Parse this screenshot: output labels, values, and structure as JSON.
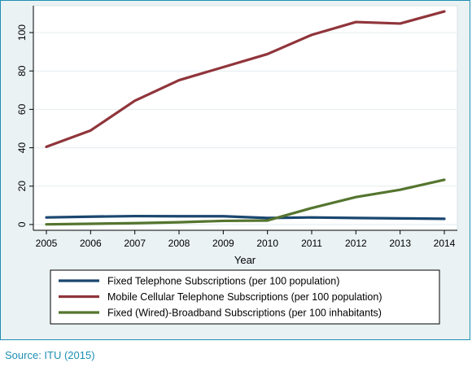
{
  "chart_data": {
    "type": "line",
    "title": "",
    "xlabel": "Year",
    "ylabel": "",
    "x": [
      2005,
      2006,
      2007,
      2008,
      2009,
      2010,
      2011,
      2012,
      2013,
      2014
    ],
    "x_ticks": [
      "2005",
      "2006",
      "2007",
      "2008",
      "2009",
      "2010",
      "2011",
      "2012",
      "2013",
      "2014"
    ],
    "y_ticks": [
      "0",
      "20",
      "40",
      "60",
      "80",
      "100"
    ],
    "xlim": [
      2005,
      2014
    ],
    "ylim": [
      -3,
      114
    ],
    "grid": true,
    "legend_position": "bottom",
    "series": [
      {
        "name": "Fixed Telephone Subscriptions (per 100 population)",
        "color": "#1a476f",
        "values": [
          3.7,
          4.1,
          4.4,
          4.3,
          4.3,
          3.4,
          3.7,
          3.4,
          3.2,
          3.0
        ]
      },
      {
        "name": "Mobile Cellular Telephone Subscriptions (per 100 population)",
        "color": "#90353b",
        "values": [
          40.5,
          49.0,
          64.5,
          75.2,
          82.0,
          88.8,
          98.8,
          105.5,
          104.7,
          111.0
        ]
      },
      {
        "name": "Fixed (Wired)-Broadband Subscriptions (per 100 inhabitants)",
        "color": "#55752f",
        "values": [
          0.1,
          0.4,
          0.7,
          1.2,
          1.9,
          2.1,
          8.6,
          14.3,
          18.1,
          23.3
        ]
      }
    ]
  },
  "source_note": "Source: ITU (2015)"
}
